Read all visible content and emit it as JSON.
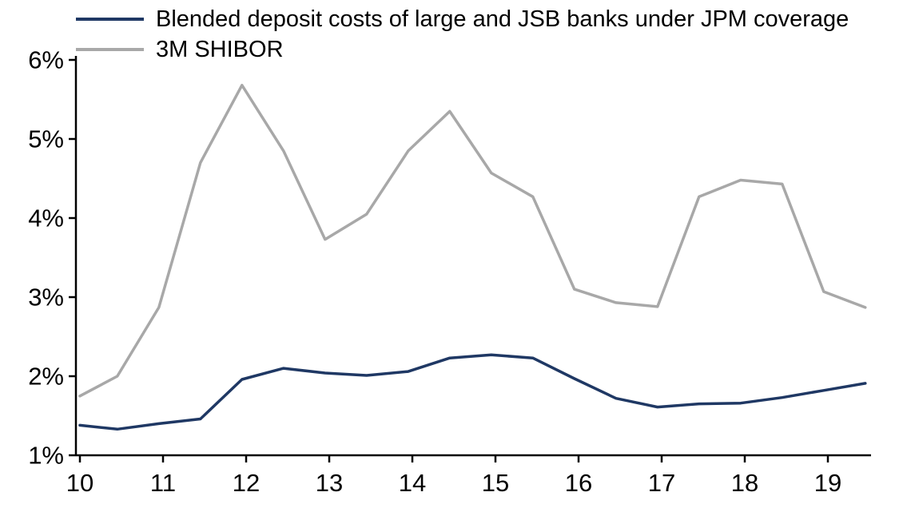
{
  "chart_data": {
    "type": "line",
    "title": "",
    "xlabel": "",
    "ylabel": "",
    "unit": "%",
    "grid": false,
    "legend_position": "top-left",
    "xlim": [
      10,
      19.52
    ],
    "ylim": [
      1,
      6
    ],
    "x": [
      10,
      10.45,
      10.95,
      11.45,
      11.95,
      12.45,
      12.95,
      13.45,
      13.95,
      14.45,
      14.95,
      15.45,
      15.95,
      16.45,
      16.95,
      17.45,
      17.95,
      18.45,
      18.95,
      19.45
    ],
    "series": [
      {
        "name": "Blended deposit costs of large and JSB banks under JPM coverage",
        "color": "#1f3864",
        "values": [
          1.38,
          1.33,
          1.4,
          1.46,
          1.96,
          2.1,
          2.04,
          2.01,
          2.06,
          2.23,
          2.27,
          2.23,
          1.97,
          1.72,
          1.61,
          1.65,
          1.66,
          1.73,
          1.82,
          1.91
        ]
      },
      {
        "name": "3M SHIBOR",
        "color": "#a8a8a8",
        "values": [
          1.75,
          2.0,
          2.87,
          4.7,
          5.68,
          4.85,
          3.73,
          4.05,
          4.85,
          5.35,
          4.57,
          4.27,
          3.1,
          2.93,
          2.88,
          4.27,
          4.48,
          4.43,
          3.07,
          2.87
        ]
      }
    ],
    "xticks": [
      {
        "v": 10,
        "label": "10"
      },
      {
        "v": 11,
        "label": "11"
      },
      {
        "v": 12,
        "label": "12"
      },
      {
        "v": 13,
        "label": "13"
      },
      {
        "v": 14,
        "label": "14"
      },
      {
        "v": 15,
        "label": "15"
      },
      {
        "v": 16,
        "label": "16"
      },
      {
        "v": 17,
        "label": "17"
      },
      {
        "v": 18,
        "label": "18"
      },
      {
        "v": 19,
        "label": "19"
      }
    ],
    "yticks": [
      {
        "v": 1,
        "label": "1%"
      },
      {
        "v": 2,
        "label": "2%"
      },
      {
        "v": 3,
        "label": "3%"
      },
      {
        "v": 4,
        "label": "4%"
      },
      {
        "v": 5,
        "label": "5%"
      },
      {
        "v": 6,
        "label": "6%"
      }
    ]
  }
}
